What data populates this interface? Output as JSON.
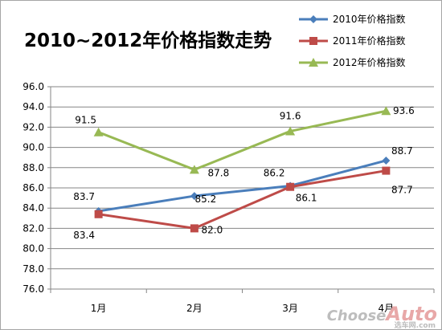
{
  "chart_data": {
    "type": "line",
    "title": "2010~2012年价格指数走势",
    "categories": [
      "1月",
      "2月",
      "3月",
      "4月"
    ],
    "ylim": [
      76.0,
      96.0
    ],
    "yticks": [
      "76.0",
      "78.0",
      "80.0",
      "82.0",
      "84.0",
      "86.0",
      "88.0",
      "90.0",
      "92.0",
      "94.0",
      "96.0"
    ],
    "grid": true,
    "legend_position": "top-right",
    "series": [
      {
        "name": "2010年价格指数",
        "color": "#4a7ebb",
        "marker": "diamond",
        "values": [
          83.7,
          85.2,
          86.2,
          88.7
        ],
        "labels": [
          "83.7",
          "85.2",
          "86.2",
          "88.7"
        ]
      },
      {
        "name": "2011年价格指数",
        "color": "#be4b48",
        "marker": "square",
        "values": [
          83.4,
          82.0,
          86.1,
          87.7
        ],
        "labels": [
          "83.4",
          "82.0",
          "86.1",
          "87.7"
        ]
      },
      {
        "name": "2012年价格指数",
        "color": "#98b954",
        "marker": "triangle",
        "values": [
          91.5,
          87.8,
          91.6,
          93.6
        ],
        "labels": [
          "91.5",
          "87.8",
          "91.6",
          "93.6"
        ]
      }
    ]
  },
  "watermark": {
    "text_a": "Choose",
    "text_b": "Auto",
    "text_c": "选车网.com"
  }
}
